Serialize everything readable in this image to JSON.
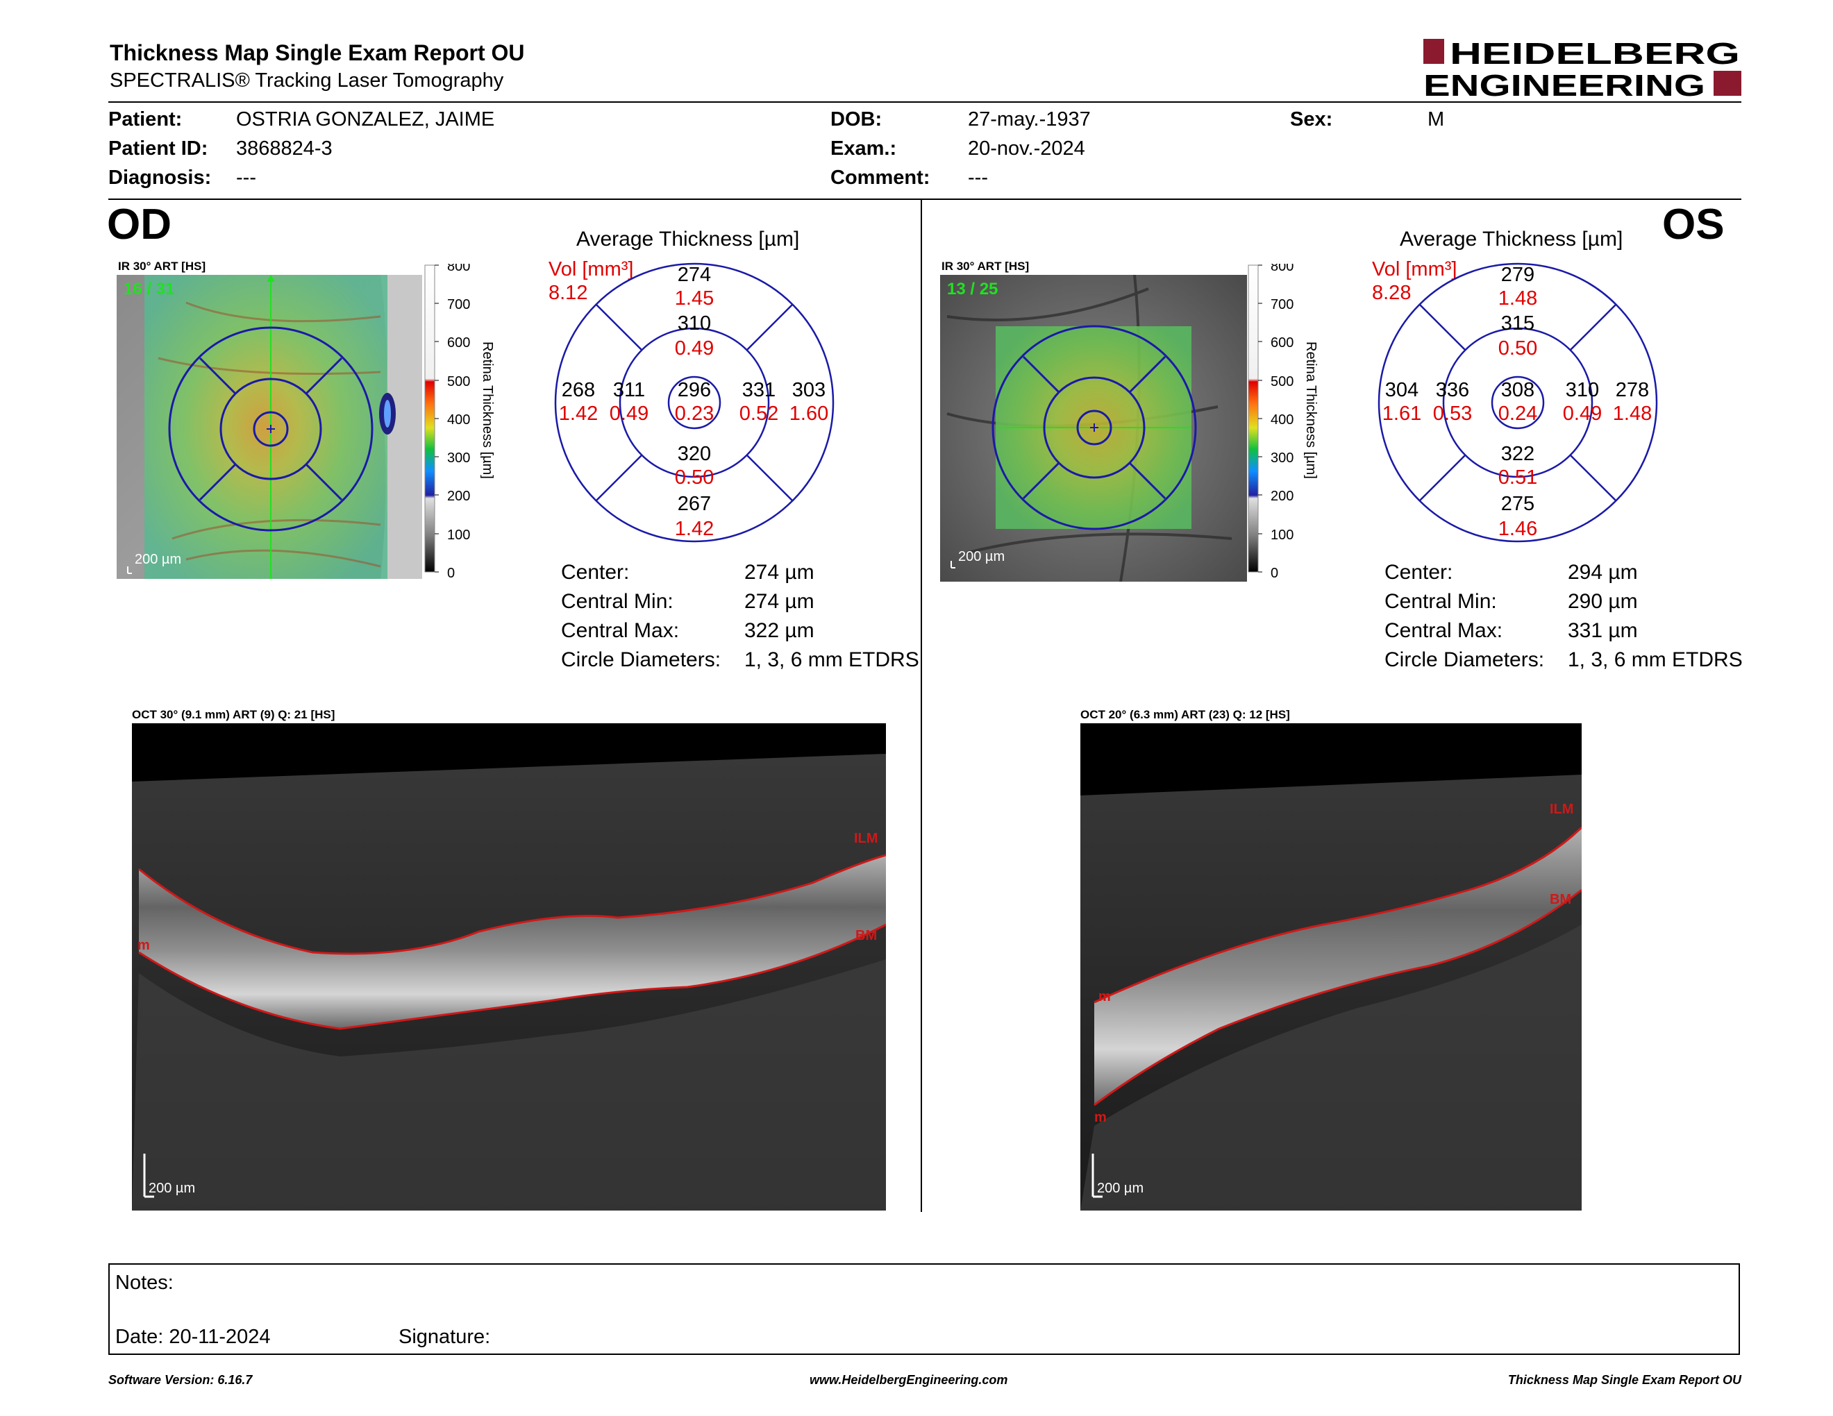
{
  "header": {
    "title": "Thickness Map Single Exam Report OU",
    "subtitle": "SPECTRALIS® Tracking Laser Tomography",
    "logo_line1": "HEIDELBERG",
    "logo_line2": "ENGINEERING"
  },
  "patient": {
    "patient_label": "Patient:",
    "patient_value": "OSTRIA GONZALEZ, JAIME",
    "id_label": "Patient ID:",
    "id_value": "3868824-3",
    "diagnosis_label": "Diagnosis:",
    "diagnosis_value": "---",
    "dob_label": "DOB:",
    "dob_value": "27-may.-1937",
    "exam_label": "Exam.:",
    "exam_value": "20-nov.-2024",
    "comment_label": "Comment:",
    "comment_value": "---",
    "sex_label": "Sex:",
    "sex_value": "M"
  },
  "od": {
    "eye_label": "OD",
    "ir_label": "IR 30° ART [HS]",
    "frame_count": "16 / 31",
    "scale_label": "200 µm",
    "colorbar_title": "Retina Thickness [µm]",
    "colorbar_ticks": [
      "800",
      "700",
      "600",
      "500",
      "400",
      "300",
      "200",
      "100",
      "0"
    ],
    "avg_title": "Average Thickness [µm]",
    "vol_label": "Vol [mm³]",
    "vol_value": "8.12",
    "sectors": {
      "center": [
        "296",
        "0.23"
      ],
      "inner_top": [
        "310",
        "0.49"
      ],
      "inner_bottom": [
        "320",
        "0.50"
      ],
      "inner_left": [
        "311",
        "0.49"
      ],
      "inner_right": [
        "331",
        "0.52"
      ],
      "outer_top": [
        "274",
        "1.45"
      ],
      "outer_bottom": [
        "267",
        "1.42"
      ],
      "outer_left": [
        "268",
        "1.42"
      ],
      "outer_right": [
        "303",
        "1.60"
      ]
    },
    "stats": [
      {
        "label": "Center:",
        "value": "274 µm"
      },
      {
        "label": "Central Min:",
        "value": "274 µm"
      },
      {
        "label": "Central Max:",
        "value": "322 µm"
      },
      {
        "label": "Circle Diameters:",
        "value": "1, 3, 6 mm ETDRS"
      }
    ],
    "oct_label": "OCT 30° (9.1 mm) ART (9) Q: 21 [HS]",
    "oct_scale": "200 µm",
    "oct_ilm": "ILM",
    "oct_bm": "BM",
    "oct_m": "m"
  },
  "os": {
    "eye_label": "OS",
    "ir_label": "IR 30° ART [HS]",
    "frame_count": "13 / 25",
    "scale_label": "200 µm",
    "colorbar_title": "Retina Thickness [µm]",
    "colorbar_ticks": [
      "800",
      "700",
      "600",
      "500",
      "400",
      "300",
      "200",
      "100",
      "0"
    ],
    "avg_title": "Average Thickness [µm]",
    "vol_label": "Vol [mm³]",
    "vol_value": "8.28",
    "sectors": {
      "center": [
        "308",
        "0.24"
      ],
      "inner_top": [
        "315",
        "0.50"
      ],
      "inner_bottom": [
        "322",
        "0.51"
      ],
      "inner_left": [
        "336",
        "0.53"
      ],
      "inner_right": [
        "310",
        "0.49"
      ],
      "outer_top": [
        "279",
        "1.48"
      ],
      "outer_bottom": [
        "275",
        "1.46"
      ],
      "outer_left": [
        "304",
        "1.61"
      ],
      "outer_right": [
        "278",
        "1.48"
      ]
    },
    "stats": [
      {
        "label": "Center:",
        "value": "294 µm"
      },
      {
        "label": "Central Min:",
        "value": "290 µm"
      },
      {
        "label": "Central Max:",
        "value": "331 µm"
      },
      {
        "label": "Circle Diameters:",
        "value": "1, 3, 6 mm ETDRS"
      }
    ],
    "oct_label": "OCT 20° (6.3 mm) ART (23) Q: 12 [HS]",
    "oct_scale": "200 µm",
    "oct_ilm": "ILM",
    "oct_bm": "BM",
    "oct_m": "m"
  },
  "notes": {
    "notes_label": "Notes:",
    "date_label": "Date: 20-11-2024",
    "signature_label": "Signature:"
  },
  "footer": {
    "software": "Software Version: 6.16.7",
    "website": "www.HeidelbergEngineering.com",
    "report": "Thickness Map Single Exam Report OU"
  },
  "colors": {
    "logo_red": "#8b1a2e",
    "value_red": "#e00000",
    "grid_blue": "#1a1aa8",
    "frame_green": "#22e022"
  }
}
